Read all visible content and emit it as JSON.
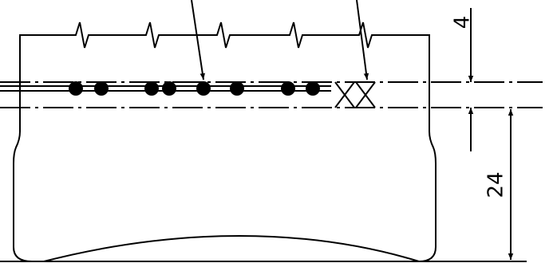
{
  "dimensions": {
    "upper": "4",
    "lower": "24"
  }
}
